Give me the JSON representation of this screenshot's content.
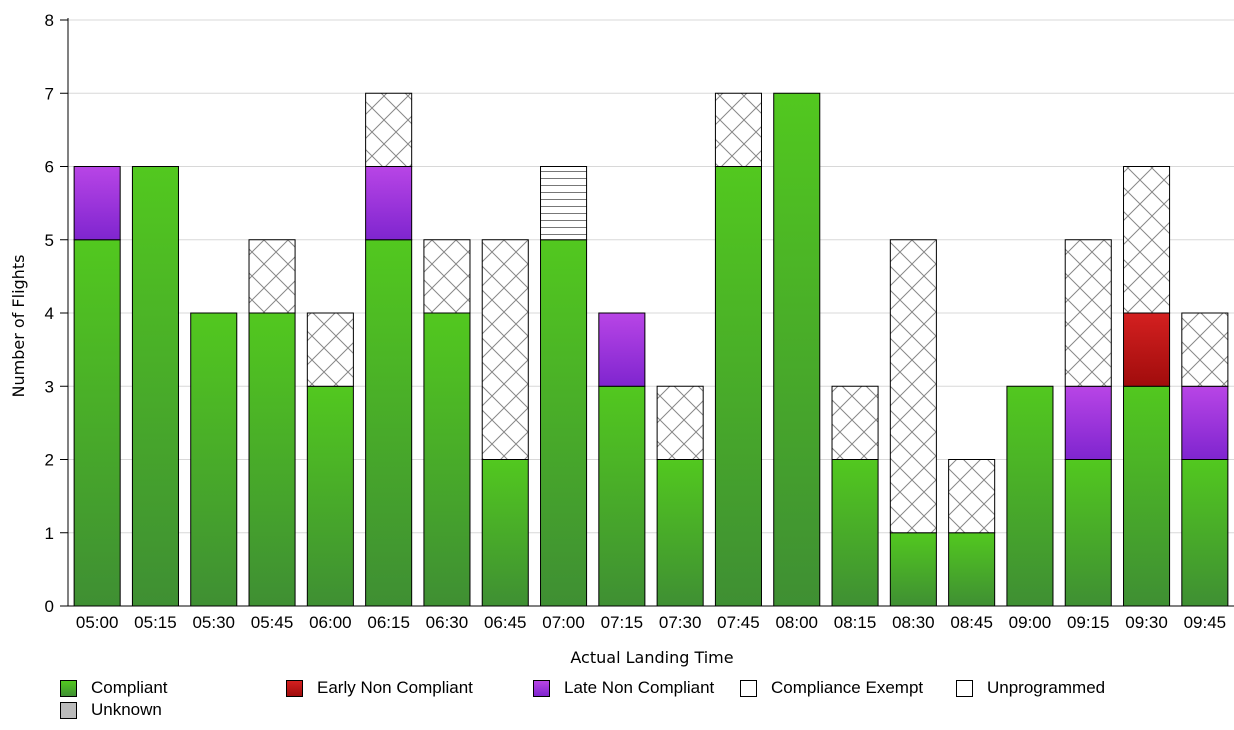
{
  "chart_data": {
    "type": "bar",
    "stacked": true,
    "xlabel": "Actual Landing Time",
    "ylabel": "Number of Flights",
    "ylim": [
      0,
      8
    ],
    "yticks": [
      0,
      1,
      2,
      3,
      4,
      5,
      6,
      7,
      8
    ],
    "grid": true,
    "legend_position": "bottom",
    "categories": [
      "05:00",
      "05:15",
      "05:30",
      "05:45",
      "06:00",
      "06:15",
      "06:30",
      "06:45",
      "07:00",
      "07:15",
      "07:30",
      "07:45",
      "08:00",
      "08:15",
      "08:30",
      "08:45",
      "09:00",
      "09:15",
      "09:30",
      "09:45"
    ],
    "series": [
      {
        "name": "Compliant",
        "values": [
          5,
          6,
          4,
          4,
          3,
          5,
          4,
          2,
          5,
          3,
          2,
          6,
          7,
          2,
          1,
          1,
          3,
          2,
          3,
          2
        ],
        "color": "#4cbf22",
        "pattern": "solid"
      },
      {
        "name": "Early Non Compliant",
        "values": [
          0,
          0,
          0,
          0,
          0,
          0,
          0,
          0,
          0,
          0,
          0,
          0,
          0,
          0,
          0,
          0,
          0,
          0,
          1,
          0
        ],
        "color": "#cc1a1a",
        "pattern": "solid"
      },
      {
        "name": "Late Non Compliant",
        "values": [
          1,
          0,
          0,
          0,
          0,
          1,
          0,
          0,
          0,
          1,
          0,
          0,
          0,
          0,
          0,
          0,
          0,
          1,
          0,
          1
        ],
        "color": "#a63be0",
        "pattern": "solid"
      },
      {
        "name": "Compliance Exempt",
        "values": [
          0,
          0,
          0,
          1,
          1,
          1,
          1,
          3,
          0,
          0,
          1,
          1,
          0,
          1,
          4,
          1,
          0,
          2,
          2,
          1
        ],
        "color": "#ffffff",
        "pattern": "crosshatch"
      },
      {
        "name": "Unprogrammed",
        "values": [
          0,
          0,
          0,
          0,
          0,
          0,
          0,
          0,
          1,
          0,
          0,
          0,
          0,
          0,
          0,
          0,
          0,
          0,
          0,
          0
        ],
        "color": "#ffffff",
        "pattern": "horizontal"
      },
      {
        "name": "Unknown",
        "values": [
          0,
          0,
          0,
          0,
          0,
          0,
          0,
          0,
          0,
          0,
          0,
          0,
          0,
          0,
          0,
          0,
          0,
          0,
          0,
          0
        ],
        "color": "#bbbbbb",
        "pattern": "solid"
      }
    ]
  }
}
